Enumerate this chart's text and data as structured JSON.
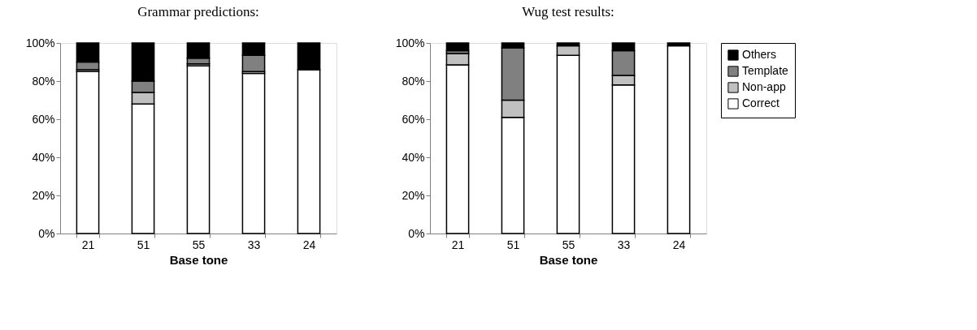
{
  "chart_data": [
    {
      "type": "bar",
      "title": "Grammar predictions:",
      "xlabel": "Base tone",
      "categories": [
        "21",
        "51",
        "55",
        "33",
        "24"
      ],
      "stacked": true,
      "ylim": [
        0,
        100
      ],
      "yticks": [
        {
          "value": 0,
          "label": "0%"
        },
        {
          "value": 20,
          "label": "20%"
        },
        {
          "value": 40,
          "label": "40%"
        },
        {
          "value": 60,
          "label": "60%"
        },
        {
          "value": 80,
          "label": "80%"
        },
        {
          "value": 100,
          "label": "100%"
        }
      ],
      "grid": false,
      "legend": false,
      "series": [
        {
          "color": "#ffffff",
          "values": [
            85,
            68,
            88,
            84,
            86
          ]
        },
        {
          "color": "#c0c0c0",
          "values": [
            1,
            6,
            1,
            1,
            null
          ]
        },
        {
          "color": "#808080",
          "values": [
            4,
            6,
            3,
            8.5,
            null
          ]
        },
        {
          "color": "#000000",
          "values": [
            10,
            20,
            8,
            6.5,
            14
          ]
        }
      ]
    },
    {
      "type": "bar",
      "title": "Wug test results:",
      "xlabel": "Base tone",
      "categories": [
        "21",
        "51",
        "55",
        "33",
        "24"
      ],
      "stacked": true,
      "ylim": [
        0,
        100
      ],
      "yticks": [
        {
          "value": 0,
          "label": "0%"
        },
        {
          "value": 20,
          "label": "20%"
        },
        {
          "value": 40,
          "label": "40%"
        },
        {
          "value": 60,
          "label": "60%"
        },
        {
          "value": 80,
          "label": "80%"
        },
        {
          "value": 100,
          "label": "100%"
        }
      ],
      "grid": false,
      "legend": "right",
      "series": [
        {
          "name": "Correct",
          "color": "#ffffff",
          "values": [
            88.5,
            61,
            93.5,
            78,
            98.5
          ]
        },
        {
          "name": "Non-app",
          "color": "#c0c0c0",
          "values": [
            6,
            9,
            5,
            5,
            null
          ]
        },
        {
          "name": "Template",
          "color": "#808080",
          "values": [
            1.5,
            27.5,
            null,
            13,
            null
          ]
        },
        {
          "name": "Others",
          "color": "#000000",
          "values": [
            4,
            2.5,
            1.5,
            4,
            1.5
          ]
        }
      ]
    }
  ]
}
